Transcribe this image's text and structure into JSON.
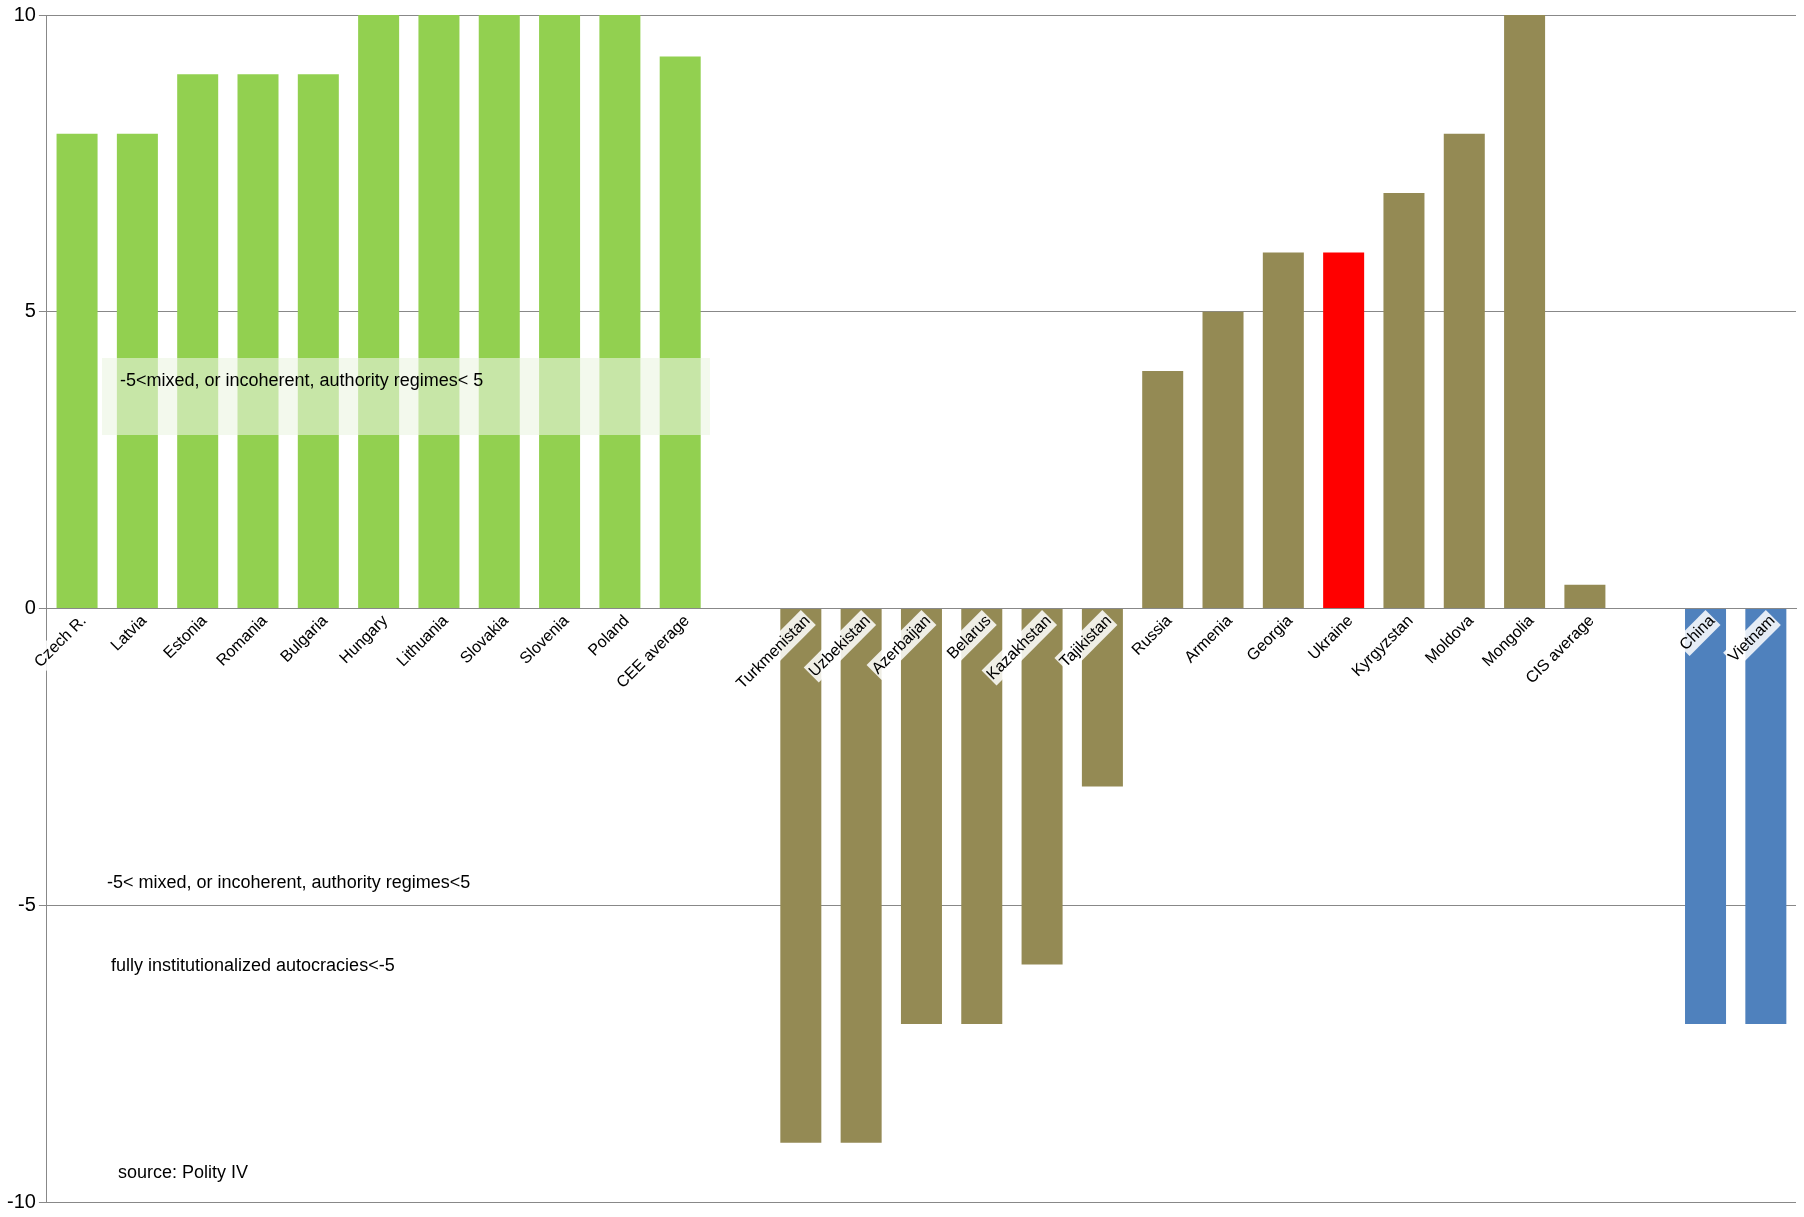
{
  "chart_data": {
    "type": "bar",
    "categories": [
      "Czech R.",
      "Latvia",
      "Estonia",
      "Romania",
      "Bulgaria",
      "Hungary",
      "Lithuania",
      "Slovakia",
      "Slovenia",
      "Poland",
      "CEE average",
      null,
      "Turkmenistan",
      "Uzbekistan",
      "Azerbaijan",
      "Belarus",
      "Kazakhstan",
      "Tajikistan",
      "Russia",
      "Armenia",
      "Georgia",
      "Ukraine",
      "Kyrgyzstan",
      "Moldova",
      "Mongolia",
      "CIS average",
      null,
      "China",
      "Vietnam"
    ],
    "values": [
      8,
      8,
      9,
      9,
      9,
      10,
      10,
      10,
      10,
      10,
      9.3,
      null,
      -9,
      -9,
      -7,
      -7,
      -6,
      -3,
      4,
      5,
      6,
      6,
      7,
      8,
      10,
      0.4,
      null,
      -7,
      -7
    ],
    "colors": [
      "#92d050",
      "#92d050",
      "#92d050",
      "#92d050",
      "#92d050",
      "#92d050",
      "#92d050",
      "#92d050",
      "#92d050",
      "#92d050",
      "#92d050",
      "#92d050",
      "#948a54",
      "#948a54",
      "#948a54",
      "#948a54",
      "#948a54",
      "#948a54",
      "#948a54",
      "#948a54",
      "#948a54",
      "#ff0000",
      "#948a54",
      "#948a54",
      "#948a54",
      "#948a54",
      "#948a54",
      "#4f81bd",
      "#4f81bd"
    ],
    "ylim": [
      -10,
      10
    ],
    "yticks": [
      -10,
      -5,
      0,
      5,
      10
    ],
    "grid": "y",
    "legend": false,
    "annotations": [
      "-5<mixed, or incoherent, authority regimes< 5",
      "-5< mixed, or incoherent, authority regimes<5",
      "fully institutionalized autocracies<-5",
      "source: Polity IV"
    ]
  }
}
